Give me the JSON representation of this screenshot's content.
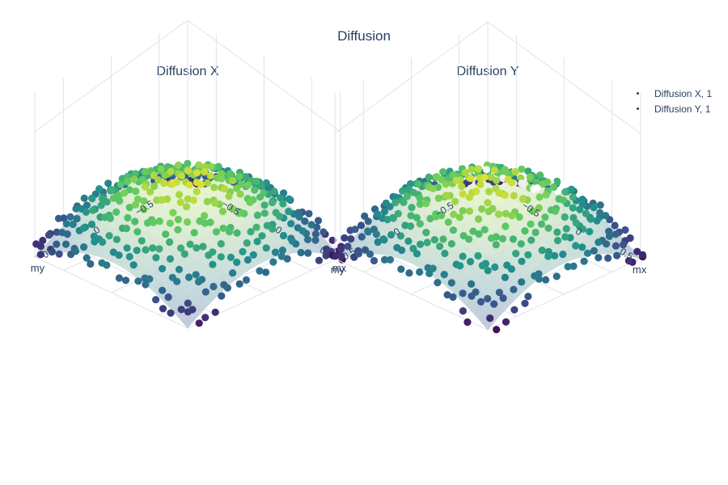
{
  "figure": {
    "title": "Diffusion"
  },
  "legend": {
    "items": [
      {
        "label": "Diffusion X, 1"
      },
      {
        "label": "Diffusion Y, 1"
      }
    ]
  },
  "colors": {
    "viridis": [
      "#440154",
      "#3b528b",
      "#21918c",
      "#5ec962",
      "#fde725"
    ],
    "surface_top": "#e6f5c8",
    "surface_bottom": "#b7a4c7",
    "grid": "#dfe3ec",
    "text": "#2a3f5f"
  },
  "chart_data": [
    {
      "type": "scatter3d+surface",
      "title": "Diffusion X",
      "xlabel": "mx",
      "ylabel": "my",
      "x_ticks": [
        "−0.5",
        "0",
        "0.5"
      ],
      "y_ticks": [
        "−0.5",
        "0",
        "0.5"
      ],
      "x_range": [
        -0.8,
        0.8
      ],
      "y_range": [
        -0.8,
        0.8
      ],
      "z_model": "cap",
      "grid": true
    },
    {
      "type": "scatter3d+surface",
      "title": "Diffusion Y",
      "xlabel": "mx",
      "ylabel": "my",
      "x_ticks": [
        "−0.5",
        "0",
        "0.5"
      ],
      "y_ticks": [
        "−0.5",
        "0",
        "0.5"
      ],
      "x_range": [
        -0.8,
        0.8
      ],
      "y_range": [
        -0.8,
        0.8
      ],
      "z_model": "cap",
      "grid": true
    }
  ]
}
